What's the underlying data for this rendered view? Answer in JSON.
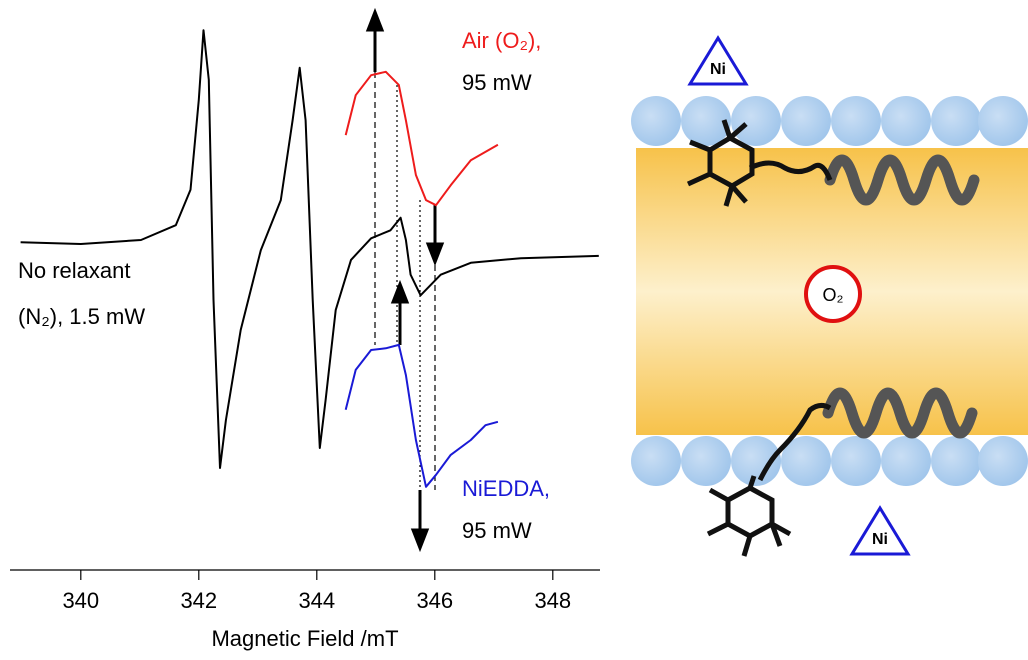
{
  "chart_data": {
    "type": "line",
    "x_label": "Magnetic Field /mT",
    "xlim": [
      338.8,
      348.8
    ],
    "xticks": [
      340,
      342,
      344,
      346,
      348
    ],
    "ylim": [
      0,
      100
    ],
    "series": [
      {
        "name": "No relaxant",
        "power": "(N₂), 1.5 mW",
        "color": "#000000",
        "x": [
          338.98,
          340.0,
          341.02,
          341.61,
          341.86,
          342.0,
          342.08,
          342.17,
          342.25,
          342.36,
          342.46,
          342.71,
          343.05,
          343.39,
          343.59,
          343.71,
          343.81,
          343.93,
          344.05,
          344.15,
          344.32,
          344.58,
          344.92,
          345.25,
          345.42,
          345.51,
          345.59,
          345.76,
          346.1,
          346.61,
          347.46,
          348.78
        ],
        "y": [
          57.5,
          57.2,
          57.9,
          60.5,
          66.7,
          82.5,
          94.7,
          86.0,
          47.4,
          17.9,
          26.3,
          42.1,
          56.1,
          64.9,
          78.9,
          88.1,
          78.9,
          47.4,
          21.4,
          29.8,
          45.6,
          54.4,
          58.2,
          59.6,
          61.8,
          57.9,
          51.8,
          48.2,
          51.8,
          53.9,
          54.7,
          55.1
        ]
      },
      {
        "name": "Air (O₂),",
        "power": "95 mW",
        "color": "#ee1c1c",
        "x": [
          344.49,
          344.66,
          344.92,
          345.17,
          345.39,
          345.51,
          345.68,
          345.85,
          346.02,
          346.27,
          346.61,
          347.07
        ],
        "y": [
          76.3,
          83.3,
          86.8,
          87.4,
          85.1,
          78.9,
          69.3,
          64.9,
          64.0,
          67.5,
          71.9,
          74.6
        ]
      },
      {
        "name": "NiEDDA,",
        "power": "95 mW",
        "color": "#1a1ad6",
        "x": [
          344.49,
          344.66,
          344.92,
          345.17,
          345.39,
          345.51,
          345.68,
          345.85,
          346.02,
          346.27,
          346.61,
          346.86,
          347.07
        ],
        "y": [
          28.1,
          35.1,
          38.6,
          38.9,
          39.5,
          34.2,
          22.8,
          14.6,
          16.7,
          20.2,
          22.8,
          25.4,
          26.0
        ]
      }
    ]
  },
  "diagram": {
    "top_label": "Ni",
    "bottom_label": "Ni",
    "center_label": "O₂"
  }
}
